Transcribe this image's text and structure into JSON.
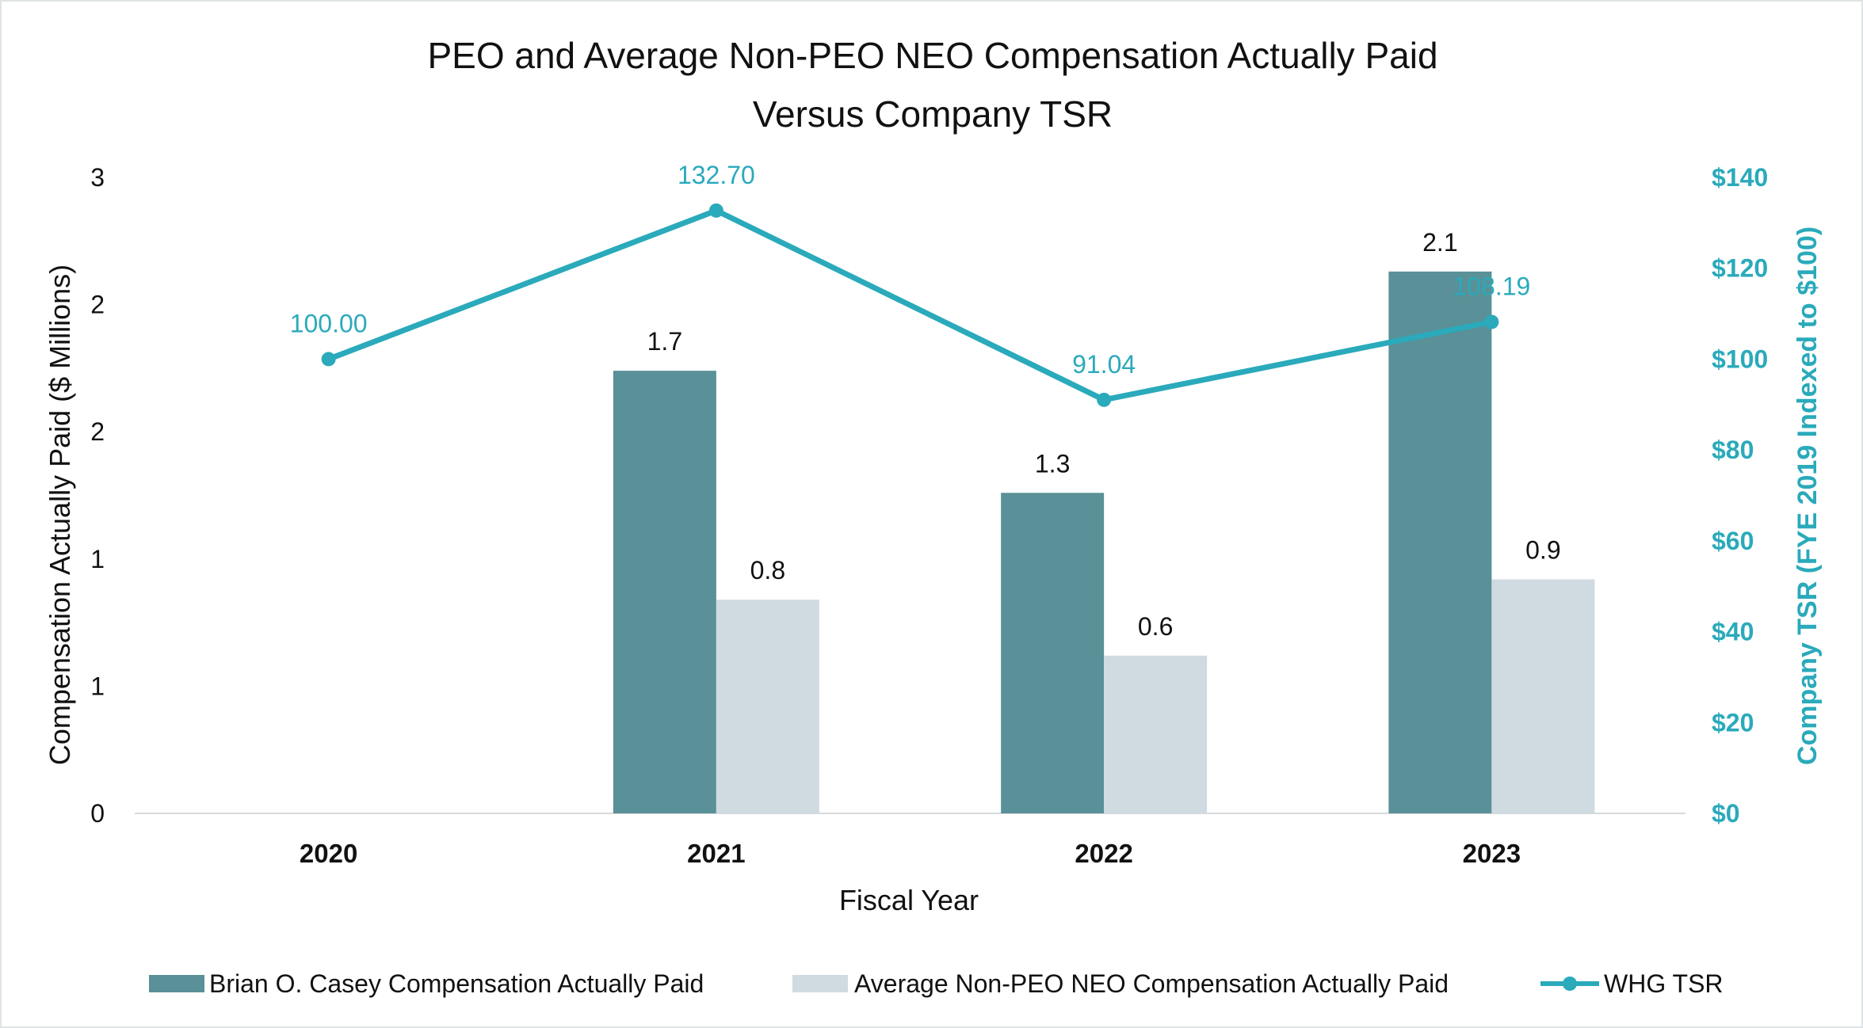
{
  "chart_data": {
    "type": "bar",
    "title_lines": [
      "PEO and Average Non-PEO NEO Compensation Actually Paid",
      "Versus Company TSR"
    ],
    "categories": [
      "2020",
      "2021",
      "2022",
      "2023"
    ],
    "xlabel": "Fiscal Year",
    "ylabel": "Compensation Actually Paid ($ Millions)",
    "ylabel_right": "Company TSR (FYE 2019 Indexed to $100)",
    "ylim": [
      0,
      2.5
    ],
    "ylim_right": [
      0,
      140
    ],
    "left_ticks": [
      {
        "value": 0,
        "label": "0"
      },
      {
        "value": 0.5,
        "label": "1"
      },
      {
        "value": 1.0,
        "label": "1"
      },
      {
        "value": 1.5,
        "label": "2"
      },
      {
        "value": 2.0,
        "label": "2"
      },
      {
        "value": 2.5,
        "label": "3"
      }
    ],
    "right_ticks": [
      {
        "value": 0,
        "label": "$0"
      },
      {
        "value": 20,
        "label": "$20"
      },
      {
        "value": 40,
        "label": "$40"
      },
      {
        "value": 60,
        "label": "$60"
      },
      {
        "value": 80,
        "label": "$80"
      },
      {
        "value": 100,
        "label": "$100"
      },
      {
        "value": 120,
        "label": "$120"
      },
      {
        "value": 140,
        "label": "$140"
      }
    ],
    "series": [
      {
        "name": "Brian O. Casey Compensation Actually Paid",
        "kind": "bar",
        "color": "#5a9097",
        "values": [
          null,
          1.74,
          1.26,
          2.13
        ],
        "labels": [
          "",
          "1.7",
          "1.3",
          "2.1"
        ]
      },
      {
        "name": "Average Non-PEO NEO Compensation Actually Paid",
        "kind": "bar",
        "color": "#cfdbe0",
        "values": [
          null,
          0.84,
          0.62,
          0.92
        ],
        "labels": [
          "",
          "0.8",
          "0.6",
          "0.9"
        ]
      },
      {
        "name": "WHG TSR",
        "kind": "line",
        "axis": "right",
        "color": "#2aaabb",
        "values": [
          100.0,
          132.7,
          91.04,
          108.19
        ],
        "labels": [
          "100.00",
          "132.70",
          "91.04",
          "108.19"
        ]
      }
    ],
    "legend_position": "bottom",
    "grid": false
  }
}
